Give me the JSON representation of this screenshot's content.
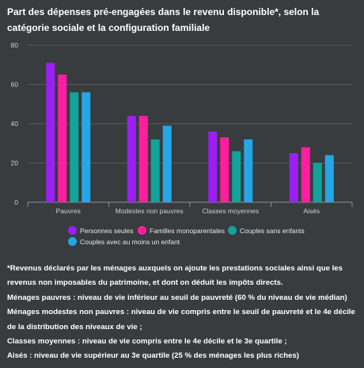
{
  "title": "Part des dépenses pré-engagées dans le revenu disponible*, selon la catégorie sociale et la configuration familiale",
  "colors": {
    "background": "#383c3f",
    "gridline": "#55595c",
    "series": [
      "#9b1ff2",
      "#ff1f9e",
      "#13a39b",
      "#25a6e6"
    ]
  },
  "chart_data": {
    "type": "bar",
    "categories": [
      "Pauvres",
      "Modestes non pauvres",
      "Classes moyennes",
      "Aisés"
    ],
    "series": [
      {
        "name": "Personnes seules",
        "values": [
          71,
          44,
          36,
          25
        ]
      },
      {
        "name": "Familles monoparentales",
        "values": [
          65,
          44,
          33,
          28
        ]
      },
      {
        "name": "Couples sans enfants",
        "values": [
          56,
          32,
          26,
          20
        ]
      },
      {
        "name": "Couples avec au moins un enfant",
        "values": [
          56,
          39,
          32,
          24
        ]
      }
    ],
    "ylim": [
      0,
      80
    ],
    "yticks": [
      0,
      20,
      40,
      60,
      80
    ],
    "grid": true,
    "legend": "bottom"
  },
  "notes": [
    "*Revenus déclarés par les ménages auxquels on ajoute les prestations sociales ainsi que les revenus non imposables du patrimoine, et dont on déduit les impôts directs.",
    "Ménages pauvres : niveau de vie inférieur au seuil de pauvreté (60 % du niveau de vie médian)",
    "Ménages modestes non pauvres : niveau de vie compris entre le seuil de pauvreté et le 4e décile de la distribution des niveaux de vie ;",
    "Classes moyennes : niveau de vie compris entre le 4e décile et le 3e quartile ;",
    "Aisés : niveau de vie supérieur au 3e quartile (25 % des ménages les plus riches)"
  ]
}
